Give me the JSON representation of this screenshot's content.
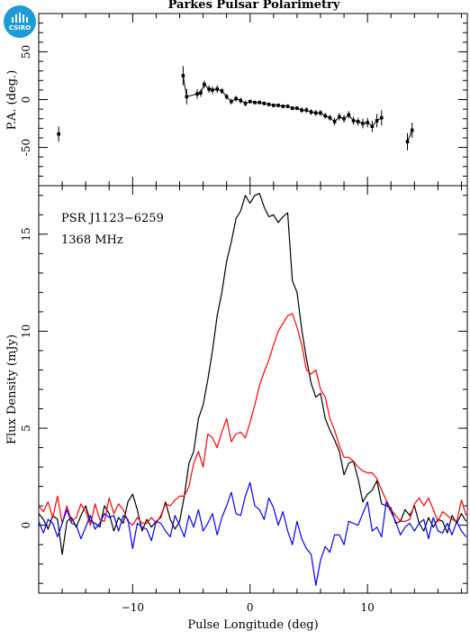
{
  "logo": {
    "text": "CSIRO",
    "icon": "csiro-logo-icon",
    "color": "#1d9bd7"
  },
  "title": "Parkes Pulsar Polarimetry",
  "chart_data": [
    {
      "type": "scatter",
      "name": "pa-panel",
      "ylabel": "P.A. (deg.)",
      "xlim": [
        -18,
        18.5
      ],
      "ylim": [
        -90,
        90
      ],
      "yticks": [
        -50,
        0,
        50
      ],
      "points": [
        {
          "x": -16.3,
          "y": -36,
          "err": 8
        },
        {
          "x": -5.7,
          "y": 25,
          "err": 10
        },
        {
          "x": -5.4,
          "y": 3,
          "err": 8
        },
        {
          "x": -4.5,
          "y": 6,
          "err": 5
        },
        {
          "x": -4.2,
          "y": 7,
          "err": 4
        },
        {
          "x": -3.9,
          "y": 16,
          "err": 4
        },
        {
          "x": -3.5,
          "y": 11,
          "err": 4
        },
        {
          "x": -3.2,
          "y": 10,
          "err": 4
        },
        {
          "x": -2.8,
          "y": 11,
          "err": 4
        },
        {
          "x": -2.4,
          "y": 9,
          "err": 3
        },
        {
          "x": -2.0,
          "y": 3,
          "err": 3
        },
        {
          "x": -1.6,
          "y": -2,
          "err": 3
        },
        {
          "x": -1.2,
          "y": 1,
          "err": 3
        },
        {
          "x": -0.8,
          "y": -1,
          "err": 3
        },
        {
          "x": -0.4,
          "y": -4,
          "err": 3
        },
        {
          "x": 0.0,
          "y": -2,
          "err": 2
        },
        {
          "x": 0.4,
          "y": -3,
          "err": 2
        },
        {
          "x": 0.8,
          "y": -3,
          "err": 2
        },
        {
          "x": 1.2,
          "y": -4,
          "err": 2
        },
        {
          "x": 1.6,
          "y": -5,
          "err": 2
        },
        {
          "x": 2.0,
          "y": -6,
          "err": 2
        },
        {
          "x": 2.4,
          "y": -6,
          "err": 2
        },
        {
          "x": 2.8,
          "y": -7,
          "err": 2
        },
        {
          "x": 3.2,
          "y": -7,
          "err": 2
        },
        {
          "x": 3.6,
          "y": -9,
          "err": 2
        },
        {
          "x": 4.0,
          "y": -9,
          "err": 2
        },
        {
          "x": 4.4,
          "y": -11,
          "err": 3
        },
        {
          "x": 4.8,
          "y": -11,
          "err": 3
        },
        {
          "x": 5.2,
          "y": -13,
          "err": 3
        },
        {
          "x": 5.6,
          "y": -14,
          "err": 3
        },
        {
          "x": 6.0,
          "y": -14,
          "err": 3
        },
        {
          "x": 6.4,
          "y": -17,
          "err": 3
        },
        {
          "x": 6.8,
          "y": -19,
          "err": 3
        },
        {
          "x": 7.2,
          "y": -23,
          "err": 4
        },
        {
          "x": 7.6,
          "y": -18,
          "err": 4
        },
        {
          "x": 8.0,
          "y": -20,
          "err": 4
        },
        {
          "x": 8.4,
          "y": -16,
          "err": 4
        },
        {
          "x": 8.8,
          "y": -22,
          "err": 4
        },
        {
          "x": 9.2,
          "y": -23,
          "err": 4
        },
        {
          "x": 9.6,
          "y": -25,
          "err": 5
        },
        {
          "x": 10.0,
          "y": -24,
          "err": 5
        },
        {
          "x": 10.4,
          "y": -28,
          "err": 6
        },
        {
          "x": 10.8,
          "y": -22,
          "err": 7
        },
        {
          "x": 11.2,
          "y": -19,
          "err": 8
        },
        {
          "x": 13.4,
          "y": -44,
          "err": 9
        },
        {
          "x": 13.8,
          "y": -32,
          "err": 8
        }
      ]
    },
    {
      "type": "line",
      "name": "profile-panel",
      "annotations": [
        "PSR J1123−6259",
        "1368 MHz"
      ],
      "xlabel": "Pulse Longitude (deg)",
      "ylabel": "Flux Density (mJy)",
      "xlim": [
        -18,
        18.5
      ],
      "ylim": [
        -3.5,
        17.5
      ],
      "xticks": [
        -10,
        0,
        10
      ],
      "yticks": [
        0,
        5,
        10,
        15
      ],
      "series": [
        {
          "color": "#000000",
          "x": [
            -18.0,
            -17.6,
            -17.2,
            -16.8,
            -16.4,
            -16.0,
            -15.6,
            -15.2,
            -14.8,
            -14.4,
            -14.0,
            -13.6,
            -13.2,
            -12.8,
            -12.4,
            -12.0,
            -11.6,
            -11.2,
            -10.8,
            -10.4,
            -10.0,
            -9.6,
            -9.2,
            -8.8,
            -8.4,
            -8.0,
            -7.6,
            -7.2,
            -6.8,
            -6.4,
            -6.0,
            -5.6,
            -5.2,
            -4.8,
            -4.4,
            -4.0,
            -3.6,
            -3.2,
            -2.8,
            -2.4,
            -2.0,
            -1.6,
            -1.2,
            -0.8,
            -0.4,
            0.0,
            0.4,
            0.8,
            1.2,
            1.6,
            2.0,
            2.4,
            2.8,
            3.2,
            3.6,
            4.0,
            4.4,
            4.8,
            5.2,
            5.6,
            6.0,
            6.4,
            6.8,
            7.2,
            7.6,
            8.0,
            8.4,
            8.8,
            9.2,
            9.6,
            10.0,
            10.4,
            10.8,
            11.2,
            11.6,
            12.0,
            12.4,
            12.8,
            13.2,
            13.6,
            14.0,
            14.4,
            14.8,
            15.2,
            15.6,
            16.0,
            16.4,
            16.8,
            17.2,
            17.6,
            18.0,
            18.4
          ],
          "y": [
            0.6,
            0.3,
            -0.2,
            0.5,
            0.3,
            -1.5,
            0.2,
            0.4,
            -0.1,
            0.5,
            1.0,
            0.2,
            0.1,
            -0.1,
            1.0,
            0.6,
            -0.3,
            0.4,
            0.1,
            1.2,
            1.6,
            0.8,
            -0.3,
            0.3,
            -0.1,
            0.2,
            0.4,
            1.2,
            0.3,
            -0.2,
            0.2,
            1.5,
            3.2,
            3.8,
            5.5,
            6.2,
            7.5,
            9.0,
            10.8,
            12.0,
            13.6,
            14.6,
            15.8,
            16.2,
            17.0,
            16.6,
            17.0,
            17.1,
            16.4,
            15.9,
            16.0,
            15.6,
            15.9,
            16.1,
            12.6,
            12.0,
            10.1,
            8.6,
            7.3,
            6.6,
            6.8,
            5.5,
            4.9,
            4.4,
            3.8,
            2.6,
            3.2,
            3.3,
            2.4,
            1.2,
            1.6,
            1.8,
            2.3,
            1.1,
            1.0,
            0.9,
            0.1,
            0.2,
            0.8,
            0.5,
            1.0,
            0.1,
            -0.3,
            0.4,
            -0.1,
            0.3,
            0.2,
            -0.4,
            0.5,
            0.1,
            0.6,
            0.2
          ]
        },
        {
          "color": "#ff0000",
          "x": [
            -18.0,
            -17.6,
            -17.2,
            -16.8,
            -16.4,
            -16.0,
            -15.6,
            -15.2,
            -14.8,
            -14.4,
            -14.0,
            -13.6,
            -13.2,
            -12.8,
            -12.4,
            -12.0,
            -11.6,
            -11.2,
            -10.8,
            -10.4,
            -10.0,
            -9.6,
            -9.2,
            -8.8,
            -8.4,
            -8.0,
            -7.6,
            -7.2,
            -6.8,
            -6.4,
            -6.0,
            -5.6,
            -5.2,
            -4.8,
            -4.4,
            -4.0,
            -3.6,
            -3.2,
            -2.8,
            -2.4,
            -2.0,
            -1.6,
            -1.2,
            -0.8,
            -0.4,
            0.0,
            0.4,
            0.8,
            1.2,
            1.6,
            2.0,
            2.4,
            2.8,
            3.2,
            3.6,
            4.0,
            4.4,
            4.8,
            5.2,
            5.6,
            6.0,
            6.4,
            6.8,
            7.2,
            7.6,
            8.0,
            8.4,
            8.8,
            9.2,
            9.6,
            10.0,
            10.4,
            10.8,
            11.2,
            11.6,
            12.0,
            12.4,
            12.8,
            13.2,
            13.6,
            14.0,
            14.4,
            14.8,
            15.2,
            15.6,
            16.0,
            16.4,
            16.8,
            17.2,
            17.6,
            18.0,
            18.4
          ],
          "y": [
            1.0,
            0.7,
            1.2,
            0.4,
            1.5,
            0.1,
            1.0,
            0.2,
            0.4,
            1.1,
            0.7,
            0.0,
            1.1,
            0.3,
            0.2,
            1.4,
            0.6,
            1.1,
            0.8,
            0.2,
            0.0,
            0.4,
            0.1,
            0.1,
            0.4,
            0.1,
            0.5,
            1.1,
            1.0,
            1.3,
            1.5,
            1.5,
            2.0,
            3.2,
            3.8,
            3.0,
            4.7,
            4.5,
            4.0,
            4.8,
            5.5,
            4.3,
            4.7,
            4.8,
            4.5,
            5.3,
            6.2,
            7.2,
            7.9,
            8.5,
            9.3,
            10.0,
            10.4,
            10.8,
            10.9,
            10.2,
            9.3,
            8.0,
            7.8,
            8.0,
            7.0,
            6.6,
            5.5,
            4.9,
            4.1,
            3.5,
            3.5,
            3.3,
            3.0,
            2.8,
            2.7,
            2.7,
            2.4,
            1.8,
            1.3,
            0.8,
            0.5,
            0.2,
            0.2,
            0.3,
            1.1,
            1.4,
            1.0,
            1.4,
            0.8,
            0.2,
            0.7,
            0.5,
            0.3,
            0.2,
            1.3,
            0.5
          ]
        },
        {
          "color": "#0000ff",
          "x": [
            -18.0,
            -17.6,
            -17.2,
            -16.8,
            -16.4,
            -16.0,
            -15.6,
            -15.2,
            -14.8,
            -14.4,
            -14.0,
            -13.6,
            -13.2,
            -12.8,
            -12.4,
            -12.0,
            -11.6,
            -11.2,
            -10.8,
            -10.4,
            -10.0,
            -9.6,
            -9.2,
            -8.8,
            -8.4,
            -8.0,
            -7.6,
            -7.2,
            -6.8,
            -6.4,
            -6.0,
            -5.6,
            -5.2,
            -4.8,
            -4.4,
            -4.0,
            -3.6,
            -3.2,
            -2.8,
            -2.4,
            -2.0,
            -1.6,
            -1.2,
            -0.8,
            -0.4,
            0.0,
            0.4,
            0.8,
            1.2,
            1.6,
            2.0,
            2.4,
            2.8,
            3.2,
            3.6,
            4.0,
            4.4,
            4.8,
            5.2,
            5.6,
            6.0,
            6.4,
            6.8,
            7.2,
            7.6,
            8.0,
            8.4,
            8.8,
            9.2,
            9.6,
            10.0,
            10.4,
            10.8,
            11.2,
            11.6,
            12.0,
            12.4,
            12.8,
            13.2,
            13.6,
            14.0,
            14.4,
            14.8,
            15.2,
            15.6,
            16.0,
            16.4,
            16.8,
            17.2,
            17.6,
            18.0,
            18.4
          ],
          "y": [
            0.2,
            -0.4,
            0.3,
            0.1,
            -0.6,
            0.1,
            0.8,
            0.1,
            0.0,
            -0.7,
            -0.1,
            0.5,
            -0.2,
            0.1,
            0.6,
            0.4,
            0.5,
            -0.3,
            0.5,
            0.3,
            -1.2,
            0.1,
            -0.1,
            -0.2,
            -0.8,
            0.2,
            0.1,
            -0.3,
            -0.6,
            0.5,
            0.0,
            -0.6,
            0.5,
            -0.1,
            0.8,
            -0.3,
            0.1,
            0.6,
            -0.5,
            0.4,
            1.0,
            1.7,
            0.6,
            0.5,
            1.5,
            2.2,
            1.0,
            0.8,
            0.3,
            1.4,
            0.9,
            0.0,
            0.7,
            -0.3,
            -1.0,
            0.2,
            -0.7,
            -1.2,
            -1.5,
            -3.1,
            -1.8,
            -1.1,
            -1.4,
            -0.5,
            -0.5,
            -1.0,
            0.2,
            0.1,
            0.0,
            0.6,
            1.2,
            -0.3,
            -0.1,
            -0.6,
            1.2,
            0.7,
            0.2,
            -0.5,
            -0.1,
            0.1,
            -0.3,
            0.1,
            0.3,
            -0.7,
            0.4,
            -0.3,
            -0.4,
            0.1,
            -0.5,
            0.2,
            -0.3,
            -0.6
          ]
        }
      ]
    }
  ]
}
